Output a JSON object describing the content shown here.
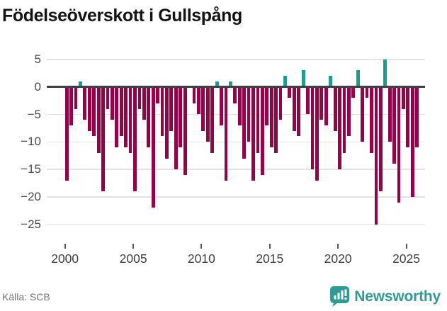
{
  "header": {
    "title": "Födelseöverskott i Gullspång"
  },
  "footer": {
    "source": "Källa: SCB",
    "brand": "Newsworthy"
  },
  "colors": {
    "negative": "#990045",
    "positive": "#1a9e92",
    "zero_line": "#404040",
    "grid": "#e3e3e3",
    "brand_teal": "#2e9c94",
    "axis_text": "#4a4a4a"
  },
  "chart_data": {
    "type": "bar",
    "title": "Födelseöverskott i Gullspång",
    "xlabel": "",
    "ylabel": "",
    "grid": true,
    "legend": false,
    "ylim": [
      -27,
      7
    ],
    "ytick_values": [
      5,
      0,
      -5,
      -10,
      -15,
      -20,
      -25
    ],
    "ytick_labels": [
      "5",
      "0",
      "−5",
      "−10",
      "−15",
      "−20",
      "−25"
    ],
    "xtick_years": [
      2000,
      2005,
      2010,
      2015,
      2020,
      2025
    ],
    "x": [
      "2000T1",
      "2000T2",
      "2000T3",
      "2001T1",
      "2001T2",
      "2001T3",
      "2002T1",
      "2002T2",
      "2002T3",
      "2003T1",
      "2003T2",
      "2003T3",
      "2004T1",
      "2004T2",
      "2004T3",
      "2005T1",
      "2005T2",
      "2005T3",
      "2006T1",
      "2006T2",
      "2006T3",
      "2007T1",
      "2007T2",
      "2007T3",
      "2008T1",
      "2008T2",
      "2008T3",
      "2009T1",
      "2009T2",
      "2009T3",
      "2010T1",
      "2010T2",
      "2010T3",
      "2011T1",
      "2011T2",
      "2011T3",
      "2012T1",
      "2012T2",
      "2012T3",
      "2013T1",
      "2013T2",
      "2013T3",
      "2014T1",
      "2014T2",
      "2014T3",
      "2015T1",
      "2015T2",
      "2015T3",
      "2016T1",
      "2016T2",
      "2016T3",
      "2017T1",
      "2017T2",
      "2017T3",
      "2018T1",
      "2018T2",
      "2018T3",
      "2019T1",
      "2019T2",
      "2019T3",
      "2020T1",
      "2020T2",
      "2020T3",
      "2021T1",
      "2021T2",
      "2021T3",
      "2022T1",
      "2022T2",
      "2022T3",
      "2023T1",
      "2023T2",
      "2023T3",
      "2024T1",
      "2024T2",
      "2024T3",
      "2025T1",
      "2025T2",
      "2025T3"
    ],
    "values": [
      -17,
      -7,
      -4,
      1,
      -6,
      -8,
      -9,
      -12,
      -19,
      -4,
      -6,
      -11,
      -9,
      -11,
      -12,
      -19,
      -4,
      -6,
      -11,
      -22,
      -3,
      -9,
      -13,
      -8,
      -15,
      -11,
      -16,
      0,
      -3,
      -5,
      -8,
      -10,
      -12,
      1,
      -7,
      -17,
      1,
      -3,
      -7,
      -13,
      -10,
      -17,
      -12,
      -16,
      -7,
      -11,
      -12,
      -6,
      2,
      -2,
      -8,
      -9,
      3,
      -5,
      -15,
      -17,
      -6,
      -7,
      2,
      -8,
      -15,
      -12,
      -9,
      -2,
      3,
      -10,
      -2,
      -12,
      -25,
      -19,
      5,
      -10,
      -14,
      -21,
      -4,
      -11,
      -20,
      -11
    ]
  }
}
